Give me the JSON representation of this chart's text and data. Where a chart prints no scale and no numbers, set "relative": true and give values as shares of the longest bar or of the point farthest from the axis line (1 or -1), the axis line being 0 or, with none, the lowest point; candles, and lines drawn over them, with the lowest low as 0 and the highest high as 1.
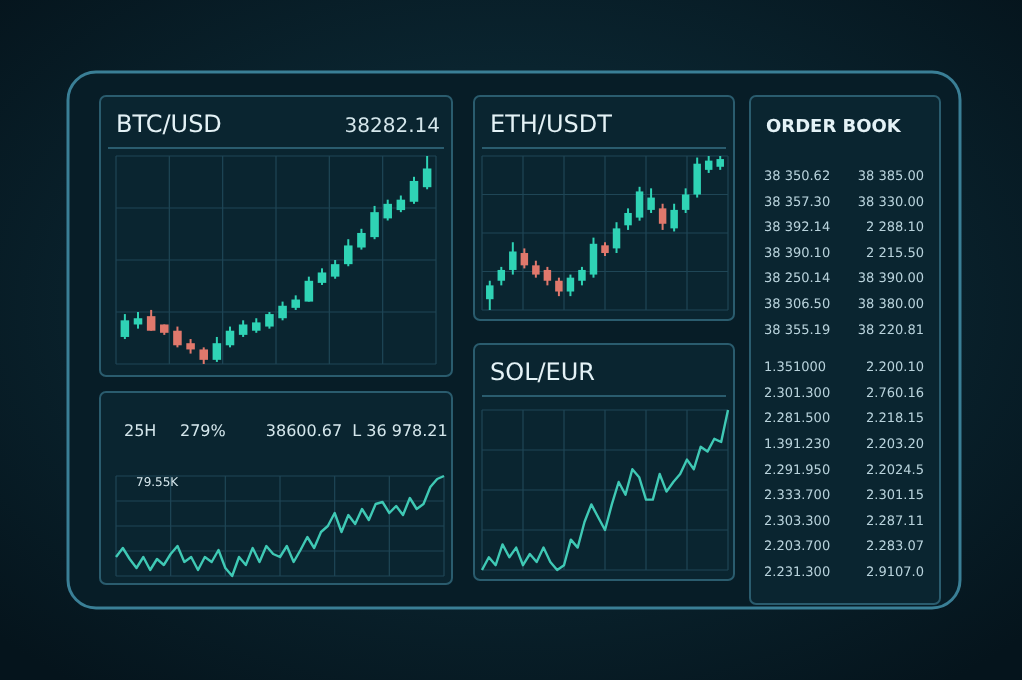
{
  "chart_data": [
    {
      "type": "candlestick",
      "title": "BTC/USD",
      "subtitle": "38282.14",
      "relative": true,
      "grid": true,
      "categories": [
        null,
        null,
        null,
        null,
        null,
        null,
        null,
        null,
        null,
        null,
        null,
        null,
        null,
        null,
        null,
        null,
        null,
        null,
        null,
        null,
        null,
        null,
        null,
        null
      ],
      "ohlc": [
        [
          0.13,
          0.24,
          0.12,
          0.21
        ],
        [
          0.19,
          0.25,
          0.17,
          0.22
        ],
        [
          0.23,
          0.26,
          0.16,
          0.16
        ],
        [
          0.19,
          0.19,
          0.14,
          0.15
        ],
        [
          0.16,
          0.18,
          0.08,
          0.09
        ],
        [
          0.1,
          0.12,
          0.05,
          0.07
        ],
        [
          0.07,
          0.08,
          0,
          0.02
        ],
        [
          0.02,
          0.13,
          0.01,
          0.1
        ],
        [
          0.09,
          0.18,
          0.08,
          0.16
        ],
        [
          0.14,
          0.21,
          0.13,
          0.19
        ],
        [
          0.16,
          0.22,
          0.15,
          0.2
        ],
        [
          0.18,
          0.25,
          0.17,
          0.24
        ],
        [
          0.22,
          0.3,
          0.21,
          0.28
        ],
        [
          0.27,
          0.33,
          0.26,
          0.31
        ],
        [
          0.3,
          0.42,
          0.3,
          0.4
        ],
        [
          0.39,
          0.46,
          0.38,
          0.44
        ],
        [
          0.42,
          0.5,
          0.41,
          0.48
        ],
        [
          0.48,
          0.6,
          0.47,
          0.57
        ],
        [
          0.56,
          0.65,
          0.55,
          0.63
        ],
        [
          0.61,
          0.76,
          0.6,
          0.73
        ],
        [
          0.7,
          0.79,
          0.69,
          0.77
        ],
        [
          0.74,
          0.81,
          0.73,
          0.79
        ],
        [
          0.78,
          0.9,
          0.77,
          0.88
        ],
        [
          0.85,
          1,
          0.84,
          0.94
        ]
      ],
      "colors": [
        "#2fd3b5",
        "#2fd3b5",
        "#e0786c",
        "#e0786c",
        "#e0786c",
        "#e0786c",
        "#e0786c",
        "#2fd3b5",
        "#2fd3b5",
        "#2fd3b5",
        "#2fd3b5",
        "#2fd3b5",
        "#2fd3b5",
        "#2fd3b5",
        "#2fd3b5",
        "#2fd3b5",
        "#2fd3b5",
        "#2fd3b5",
        "#2fd3b5",
        "#2fd3b5",
        "#2fd3b5",
        "#2fd3b5",
        "#2fd3b5",
        "#2fd3b5"
      ]
    },
    {
      "type": "line",
      "relative": true,
      "grid": true,
      "annotations": [
        "25H",
        "279%",
        "38600.67",
        "L 36 978.21",
        "79.55K"
      ],
      "categories": [
        null,
        null,
        null,
        null,
        null,
        null,
        null,
        null,
        null,
        null,
        null,
        null,
        null,
        null,
        null,
        null,
        null,
        null,
        null,
        null,
        null,
        null,
        null,
        null,
        null,
        null,
        null,
        null,
        null,
        null,
        null,
        null,
        null,
        null,
        null,
        null,
        null,
        null,
        null,
        null,
        null,
        null,
        null,
        null,
        null,
        null,
        null,
        null,
        null
      ],
      "series": [
        {
          "color": "#3fc9b5",
          "values": [
            0.19,
            0.28,
            0.17,
            0.08,
            0.19,
            0.06,
            0.17,
            0.11,
            0.22,
            0.3,
            0.14,
            0.19,
            0.06,
            0.19,
            0.14,
            0.26,
            0.08,
            0,
            0.19,
            0.11,
            0.28,
            0.14,
            0.3,
            0.22,
            0.19,
            0.3,
            0.14,
            0.26,
            0.39,
            0.28,
            0.44,
            0.5,
            0.63,
            0.44,
            0.61,
            0.52,
            0.67,
            0.56,
            0.72,
            0.74,
            0.63,
            0.7,
            0.61,
            0.78,
            0.67,
            0.72,
            0.89,
            0.97,
            1
          ]
        }
      ]
    },
    {
      "type": "candlestick",
      "title": "ETH/USDT",
      "relative": true,
      "grid": true,
      "categories": [
        null,
        null,
        null,
        null,
        null,
        null,
        null,
        null,
        null,
        null,
        null,
        null,
        null,
        null,
        null,
        null,
        null,
        null,
        null,
        null,
        null
      ],
      "ohlc": [
        [
          0.07,
          0.19,
          0,
          0.16
        ],
        [
          0.19,
          0.28,
          0.16,
          0.26
        ],
        [
          0.26,
          0.44,
          0.23,
          0.38
        ],
        [
          0.37,
          0.4,
          0.27,
          0.29
        ],
        [
          0.29,
          0.32,
          0.21,
          0.23
        ],
        [
          0.26,
          0.28,
          0.16,
          0.19
        ],
        [
          0.19,
          0.21,
          0.09,
          0.12
        ],
        [
          0.12,
          0.23,
          0.09,
          0.21
        ],
        [
          0.19,
          0.28,
          0.16,
          0.26
        ],
        [
          0.23,
          0.47,
          0.21,
          0.43
        ],
        [
          0.42,
          0.44,
          0.35,
          0.37
        ],
        [
          0.4,
          0.57,
          0.37,
          0.53
        ],
        [
          0.55,
          0.66,
          0.52,
          0.63
        ],
        [
          0.6,
          0.8,
          0.58,
          0.77
        ],
        [
          0.65,
          0.79,
          0.63,
          0.73
        ],
        [
          0.66,
          0.69,
          0.52,
          0.56
        ],
        [
          0.53,
          0.69,
          0.51,
          0.65
        ],
        [
          0.65,
          0.79,
          0.63,
          0.75
        ],
        [
          0.75,
          0.99,
          0.73,
          0.95
        ],
        [
          0.91,
          1,
          0.89,
          0.97
        ],
        [
          0.93,
          1,
          0.91,
          0.98
        ]
      ],
      "colors": [
        "#2fd3b5",
        "#2fd3b5",
        "#2fd3b5",
        "#e0786c",
        "#e0786c",
        "#e0786c",
        "#e0786c",
        "#2fd3b5",
        "#2fd3b5",
        "#2fd3b5",
        "#e0786c",
        "#2fd3b5",
        "#2fd3b5",
        "#2fd3b5",
        "#2fd3b5",
        "#e0786c",
        "#2fd3b5",
        "#2fd3b5",
        "#2fd3b5",
        "#2fd3b5",
        "#2fd3b5"
      ]
    },
    {
      "type": "line",
      "title": "SOL/EUR",
      "relative": true,
      "grid": true,
      "categories": [
        null,
        null,
        null,
        null,
        null,
        null,
        null,
        null,
        null,
        null,
        null,
        null,
        null,
        null,
        null,
        null,
        null,
        null,
        null,
        null,
        null,
        null,
        null,
        null,
        null,
        null,
        null,
        null,
        null,
        null,
        null,
        null,
        null,
        null,
        null,
        null,
        null
      ],
      "series": [
        {
          "color": "#3fc9b5",
          "values": [
            0,
            0.08,
            0.03,
            0.16,
            0.08,
            0.14,
            0.03,
            0.1,
            0.05,
            0.14,
            0.05,
            0,
            0.03,
            0.19,
            0.14,
            0.3,
            0.41,
            0.33,
            0.25,
            0.41,
            0.55,
            0.47,
            0.63,
            0.58,
            0.44,
            0.44,
            0.6,
            0.49,
            0.55,
            0.6,
            0.69,
            0.63,
            0.77,
            0.74,
            0.82,
            0.8,
            1
          ]
        }
      ]
    },
    {
      "type": "other",
      "title": "ORDER BOOK",
      "annotations": [
        "38 350.62",
        "38 385.00",
        "38 357.30",
        "38 330.00",
        "38 392.14",
        "2 288.10",
        "38 390.10",
        "2 215.50",
        "38 250.14",
        "38 390.00",
        "38 306.50",
        "38 380.00",
        "38 355.19",
        "38 220.81",
        "1.351000",
        "2.200.10",
        "2.301.300",
        "2.760.16",
        "2.281.500",
        "2.218.15",
        "1.391.230",
        "2.203.20",
        "2.291.950",
        "2.2024.5",
        "2.333.700",
        "2.301.15",
        "2.303.300",
        "2.287.11",
        "2.203.700",
        "2.283.07",
        "2.231.300",
        "2.9107.0"
      ]
    }
  ]
}
